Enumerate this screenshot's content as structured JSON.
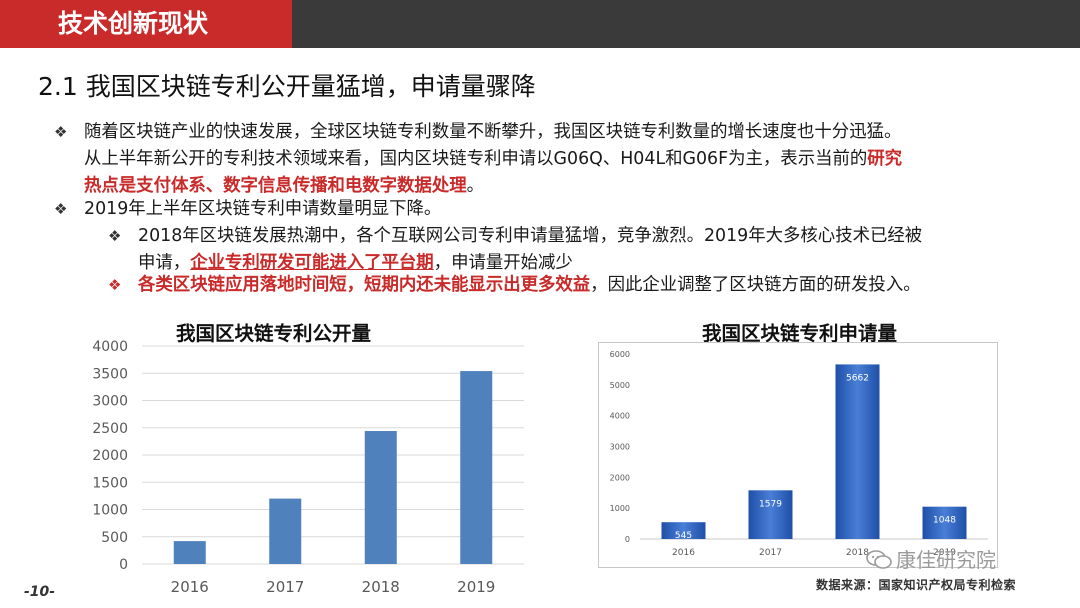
{
  "header": {
    "section_title": "技术创新现状"
  },
  "headline": "2.1 我国区块链专利公开量猛增，申请量骤降",
  "points": {
    "p1_line1": "随着区块链产业的快速发展，全球区块链专利数量不断攀升，我国区块链专利数量的增长速度也十分迅猛。",
    "p1_line2a": "从上半年新公开的专利技术领域来看，国内区块链专利申请以G06Q、H04L和G06F为主，表示当前的",
    "p1_line2b": "研究",
    "p1_line3": "热点是支付体系、数字信息传播和电数字数据处理",
    "p1_line3_end": "。",
    "p2": "2019年上半年区块链专利申请数量明显下降。",
    "p2a_line1": "2018年区块链发展热潮中，各个互联网公司专利申请量猛增，竞争激烈。2019年大多核心技术已经被",
    "p2a_line2a": "申请，",
    "p2a_line2b": "企业专利研发可能进入了平台期",
    "p2a_line2c": "，申请量开始减少",
    "p2b_a": "各类区块链应用落地时间短，短期内还未能显示出更多效益",
    "p2b_b": "，因此企业调整了区块链方面的研发投入。"
  },
  "icons": {
    "bullet": "diamond-bullet-icon",
    "watermark": "wechat-icon"
  },
  "chart_data": [
    {
      "type": "bar",
      "title": "我国区块链专利公开量",
      "categories": [
        "2016",
        "2017",
        "2018",
        "2019"
      ],
      "values": [
        420,
        1200,
        2440,
        3540
      ],
      "ylim": [
        0,
        4000
      ],
      "yticks": [
        "0",
        "500",
        "1000",
        "1500",
        "2000",
        "2500",
        "3000",
        "3500",
        "4000"
      ],
      "grid": true,
      "color": "#4f81bd"
    },
    {
      "type": "bar",
      "title": "我国区块链专利申请量",
      "categories": [
        "2016",
        "2017",
        "2018",
        "2019"
      ],
      "values": [
        545,
        1579,
        5662,
        1048
      ],
      "labels": [
        "545",
        "1579",
        "5662",
        "1048"
      ],
      "ylim": [
        0,
        6000
      ],
      "yticks": [
        "0",
        "1000",
        "2000",
        "3000",
        "4000",
        "5000",
        "6000"
      ],
      "grid": false,
      "color": "#2e5fb8"
    }
  ],
  "footer": {
    "page_number": "-10-",
    "source": "数据来源：国家知识产权局专利检索",
    "watermark": "康佳研究院"
  },
  "colors": {
    "accent_red": "#c92a2a",
    "dark_bar": "#3a3a3a"
  }
}
